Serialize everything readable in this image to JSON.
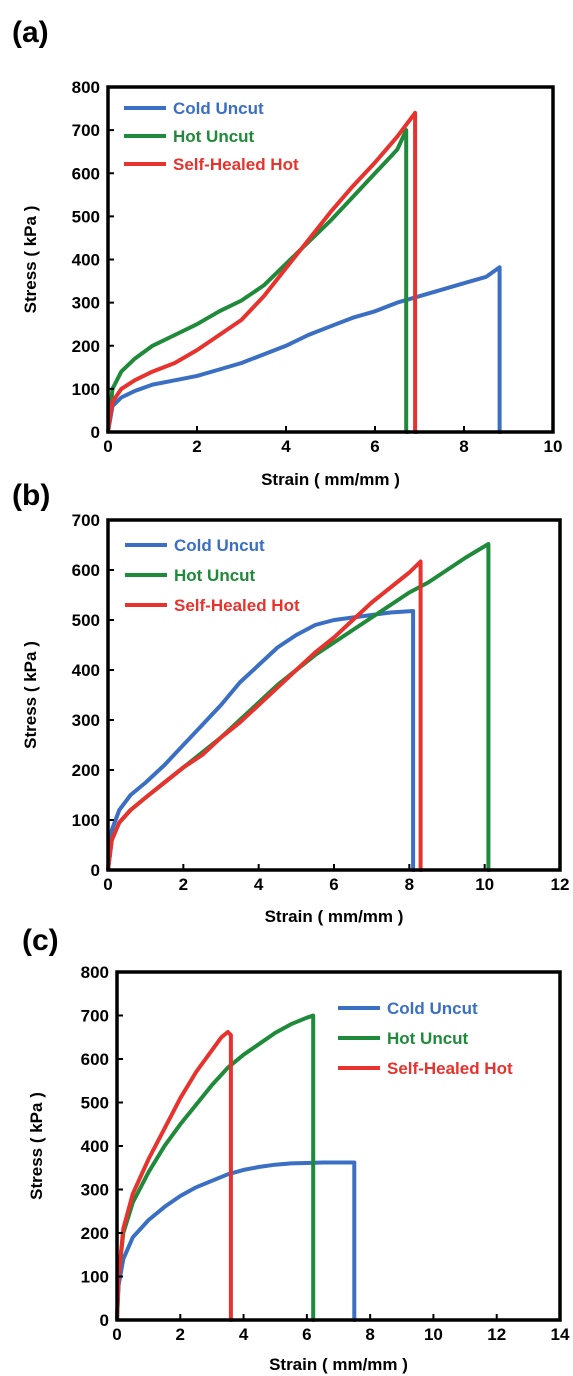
{
  "chart_data": [
    {
      "panel": "(a)",
      "type": "line",
      "xlabel": "Strain ( mm/mm )",
      "ylabel": "Stress ( kPa )",
      "xlim": [
        0,
        10
      ],
      "ylim": [
        0,
        800
      ],
      "xticks": [
        "0",
        "2",
        "4",
        "6",
        "8",
        "10"
      ],
      "yticks": [
        "0",
        "100",
        "200",
        "300",
        "400",
        "500",
        "600",
        "700",
        "800"
      ],
      "legend_position": "top-left",
      "series": [
        {
          "name": "Cold Uncut",
          "color": "#3a6fc4",
          "x": [
            0,
            0.1,
            0.3,
            0.6,
            1,
            1.5,
            2,
            2.5,
            3,
            3.5,
            4,
            4.5,
            5,
            5.5,
            6,
            6.5,
            7,
            7.5,
            8,
            8.5,
            8.8,
            8.8,
            8.85
          ],
          "y": [
            0,
            60,
            80,
            95,
            110,
            120,
            130,
            145,
            160,
            180,
            200,
            225,
            245,
            265,
            280,
            300,
            315,
            330,
            345,
            360,
            382,
            0,
            0
          ]
        },
        {
          "name": "Hot Uncut",
          "color": "#1f8a3a",
          "x": [
            0,
            0.1,
            0.3,
            0.6,
            1,
            1.5,
            2,
            2.5,
            3,
            3.5,
            4,
            4.5,
            5,
            5.5,
            6,
            6.5,
            6.7,
            6.7,
            6.75
          ],
          "y": [
            0,
            100,
            140,
            170,
            200,
            225,
            250,
            280,
            305,
            340,
            390,
            440,
            490,
            545,
            600,
            655,
            700,
            0,
            0
          ]
        },
        {
          "name": "Self-Healed Hot",
          "color": "#e8322d",
          "x": [
            0,
            0.1,
            0.3,
            0.6,
            1,
            1.5,
            2,
            2.5,
            3,
            3.5,
            4,
            4.5,
            5,
            5.5,
            6,
            6.5,
            6.9,
            6.9,
            6.95
          ],
          "y": [
            0,
            70,
            100,
            120,
            140,
            160,
            190,
            225,
            260,
            315,
            380,
            445,
            510,
            570,
            625,
            685,
            740,
            0,
            0
          ]
        }
      ]
    },
    {
      "panel": "(b)",
      "type": "line",
      "xlabel": "Strain ( mm/mm )",
      "ylabel": "Stress ( kPa )",
      "xlim": [
        0,
        12
      ],
      "ylim": [
        0,
        700
      ],
      "xticks": [
        "0",
        "2",
        "4",
        "6",
        "8",
        "10",
        "12"
      ],
      "yticks": [
        "0",
        "100",
        "200",
        "300",
        "400",
        "500",
        "600",
        "700"
      ],
      "legend_position": "top-left",
      "series": [
        {
          "name": "Cold Uncut",
          "color": "#3a6fc4",
          "x": [
            0,
            0.1,
            0.3,
            0.6,
            1,
            1.5,
            2,
            2.5,
            3,
            3.5,
            4,
            4.5,
            5,
            5.5,
            6,
            6.5,
            7,
            7.5,
            8.1,
            8.1,
            8.15
          ],
          "y": [
            0,
            80,
            120,
            150,
            175,
            210,
            250,
            290,
            330,
            375,
            410,
            445,
            470,
            490,
            500,
            505,
            510,
            515,
            518,
            0,
            0
          ]
        },
        {
          "name": "Hot Uncut",
          "color": "#1f8a3a",
          "x": [
            0,
            0.1,
            0.3,
            0.6,
            1,
            1.5,
            2,
            2.5,
            3,
            3.5,
            4,
            4.5,
            5,
            5.5,
            6,
            6.5,
            7,
            7.5,
            8,
            8.5,
            9,
            9.5,
            10.1,
            10.1,
            10.15
          ],
          "y": [
            0,
            60,
            95,
            120,
            145,
            175,
            205,
            235,
            265,
            300,
            335,
            370,
            400,
            430,
            455,
            480,
            505,
            530,
            555,
            575,
            600,
            625,
            652,
            0,
            0
          ]
        },
        {
          "name": "Self-Healed Hot",
          "color": "#e8322d",
          "x": [
            0,
            0.1,
            0.3,
            0.6,
            1,
            1.5,
            2,
            2.5,
            3,
            3.5,
            4,
            4.5,
            5,
            5.5,
            6,
            6.5,
            7,
            7.5,
            8,
            8.3,
            8.3,
            8.35
          ],
          "y": [
            0,
            60,
            95,
            120,
            145,
            175,
            205,
            230,
            265,
            295,
            330,
            365,
            400,
            435,
            465,
            500,
            535,
            565,
            595,
            617,
            0,
            0
          ]
        }
      ]
    },
    {
      "panel": "(c)",
      "type": "line",
      "xlabel": "Strain ( mm/mm )",
      "ylabel": "Stress ( kPa )",
      "xlim": [
        0,
        14
      ],
      "ylim": [
        0,
        800
      ],
      "xticks": [
        "0",
        "2",
        "4",
        "6",
        "8",
        "10",
        "12",
        "14"
      ],
      "yticks": [
        "0",
        "100",
        "200",
        "300",
        "400",
        "500",
        "600",
        "700",
        "800"
      ],
      "legend_position": "top-right",
      "series": [
        {
          "name": "Cold Uncut",
          "color": "#3a6fc4",
          "x": [
            0,
            0.05,
            0.2,
            0.5,
            1,
            1.5,
            2,
            2.5,
            3,
            3.5,
            4,
            4.5,
            5,
            5.5,
            6,
            6.5,
            7,
            7.5,
            7.5,
            7.55
          ],
          "y": [
            0,
            80,
            140,
            190,
            230,
            260,
            285,
            305,
            320,
            335,
            345,
            352,
            357,
            360,
            361,
            362,
            362,
            362,
            0,
            0
          ]
        },
        {
          "name": "Hot Uncut",
          "color": "#1f8a3a",
          "x": [
            0,
            0.05,
            0.2,
            0.5,
            1,
            1.5,
            2,
            2.5,
            3,
            3.5,
            4,
            4.5,
            5,
            5.5,
            6,
            6.2,
            6.2,
            6.25
          ],
          "y": [
            0,
            100,
            200,
            270,
            340,
            400,
            450,
            495,
            540,
            580,
            610,
            635,
            660,
            680,
            695,
            700,
            0,
            0
          ]
        },
        {
          "name": "Self-Healed Hot",
          "color": "#e8322d",
          "x": [
            0,
            0.05,
            0.2,
            0.5,
            1,
            1.5,
            2,
            2.5,
            3,
            3.3,
            3.5,
            3.6,
            3.6,
            3.65
          ],
          "y": [
            0,
            100,
            210,
            290,
            370,
            440,
            510,
            570,
            620,
            650,
            662,
            655,
            0,
            0
          ]
        }
      ]
    }
  ]
}
